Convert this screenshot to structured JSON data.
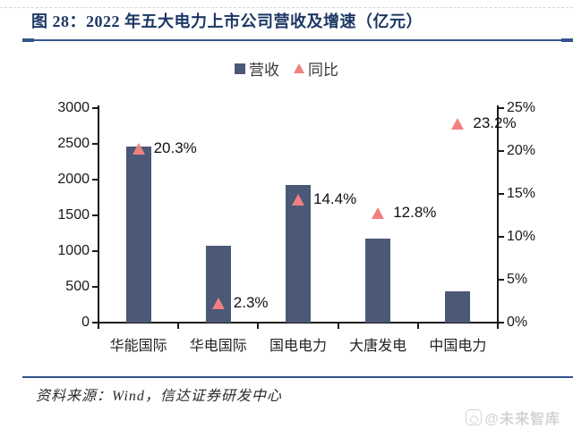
{
  "figure": {
    "title": "图 28：2022 年五大电力上市公司营收及增速（亿元）",
    "source": "资料来源：Wind，信达证券研发中心",
    "watermark": "@未来智库",
    "accent_color": "#33558c",
    "title_color": "#1c3765"
  },
  "legend": {
    "items": [
      {
        "label": "营收",
        "marker": "square",
        "color": "#4c5878"
      },
      {
        "label": "同比",
        "marker": "triangle",
        "color": "#f0807f"
      }
    ]
  },
  "chart_data": {
    "type": "bar",
    "title": "2022 年五大电力上市公司营收及增速（亿元）",
    "categories": [
      "华能国际",
      "华电国际",
      "国电电力",
      "大唐发电",
      "中国电力"
    ],
    "series": [
      {
        "name": "营收",
        "type": "bar",
        "axis": "left",
        "color": "#4c5878",
        "values": [
          2460,
          1070,
          1930,
          1170,
          440
        ]
      },
      {
        "name": "同比",
        "type": "scatter-triangle",
        "axis": "right",
        "color": "#f0807f",
        "values": [
          20.3,
          2.3,
          14.4,
          12.8,
          23.2
        ],
        "labels": [
          "20.3%",
          "2.3%",
          "14.4%",
          "12.8%",
          "23.2%"
        ]
      }
    ],
    "left_axis": {
      "min": 0,
      "max": 3000,
      "step": 500,
      "ticks": [
        {
          "v": 0,
          "label": "0"
        },
        {
          "v": 500,
          "label": "500"
        },
        {
          "v": 1000,
          "label": "1000"
        },
        {
          "v": 1500,
          "label": "1500"
        },
        {
          "v": 2000,
          "label": "2000"
        },
        {
          "v": 2500,
          "label": "2500"
        },
        {
          "v": 3000,
          "label": "3000"
        }
      ]
    },
    "right_axis": {
      "min": 0,
      "max": 25,
      "step": 5,
      "ticks": [
        {
          "v": 0,
          "label": "0%"
        },
        {
          "v": 5,
          "label": "5%"
        },
        {
          "v": 10,
          "label": "10%"
        },
        {
          "v": 15,
          "label": "15%"
        },
        {
          "v": 20,
          "label": "20%"
        },
        {
          "v": 25,
          "label": "25%"
        }
      ]
    },
    "grid": false,
    "legend_position": "top-center"
  }
}
